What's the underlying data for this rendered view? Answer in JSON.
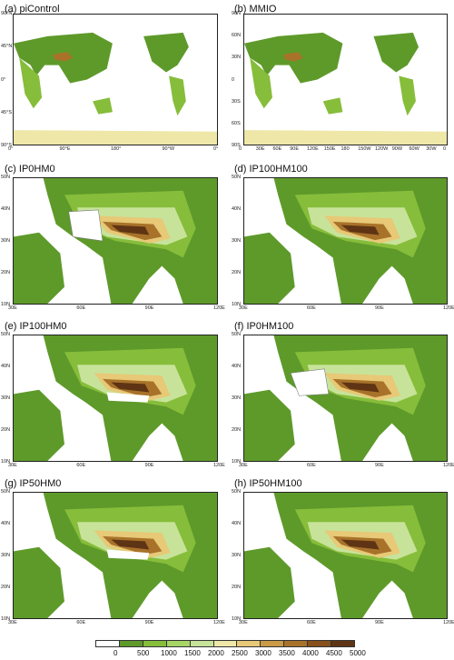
{
  "panels": [
    {
      "id": "a",
      "title": "(a) piControl",
      "lat_ticks": [
        "90°N",
        "45°N",
        "0°",
        "45°S",
        "90°S"
      ],
      "lon_ticks": [
        "0°",
        "90°E",
        "180°",
        "90°W",
        "0°"
      ]
    },
    {
      "id": "b",
      "title": "(b) MMIO",
      "lat_ticks": [
        "90N",
        "60N",
        "30N",
        "0",
        "30S",
        "60S",
        "90S"
      ],
      "lon_ticks": [
        "0",
        "30E",
        "60E",
        "90E",
        "120E",
        "150E",
        "180",
        "150W",
        "120W",
        "90W",
        "60W",
        "30W",
        "0"
      ]
    },
    {
      "id": "c",
      "title": "(c) IP0HM0",
      "lat_ticks": [
        "50N",
        "40N",
        "30N",
        "20N",
        "10N"
      ],
      "lon_ticks": [
        "30E",
        "60E",
        "90E",
        "120E"
      ]
    },
    {
      "id": "d",
      "title": "(d) IP100HM100",
      "lat_ticks": [
        "50N",
        "40N",
        "30N",
        "20N",
        "10N"
      ],
      "lon_ticks": [
        "30E",
        "60E",
        "90E",
        "120E"
      ]
    },
    {
      "id": "e",
      "title": "(e) IP100HM0",
      "lat_ticks": [
        "50N",
        "40N",
        "30N",
        "20N",
        "10N"
      ],
      "lon_ticks": [
        "30E",
        "60E",
        "90E",
        "120E"
      ]
    },
    {
      "id": "f",
      "title": "(f) IP0HM100",
      "lat_ticks": [
        "50N",
        "40N",
        "30N",
        "20N",
        "10N"
      ],
      "lon_ticks": [
        "30E",
        "60E",
        "90E",
        "120E"
      ]
    },
    {
      "id": "g",
      "title": "(g) IP50HM0",
      "lat_ticks": [
        "50N",
        "40N",
        "30N",
        "20N",
        "10N"
      ],
      "lon_ticks": [
        "30E",
        "60E",
        "90E",
        "120E"
      ]
    },
    {
      "id": "h",
      "title": "(h) IP50HM100",
      "lat_ticks": [
        "50N",
        "40N",
        "30N",
        "20N",
        "10N"
      ],
      "lon_ticks": [
        "30E",
        "60E",
        "90E",
        "120E"
      ]
    }
  ],
  "colorbar": {
    "labels": [
      "0",
      "500",
      "1000",
      "1500",
      "2000",
      "2500",
      "3000",
      "3500",
      "4000",
      "4500",
      "5000"
    ],
    "colors": [
      "#ffffff",
      "#5e9a2a",
      "#86bd3a",
      "#a7d566",
      "#c7e39a",
      "#eee7a8",
      "#e7c977",
      "#c99b46",
      "#a8722a",
      "#87501c",
      "#5e3414"
    ]
  }
}
